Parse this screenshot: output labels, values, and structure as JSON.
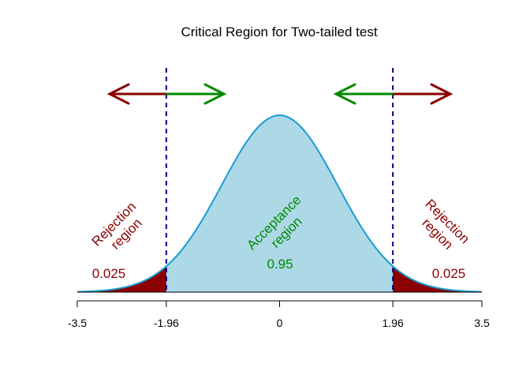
{
  "chart_data": {
    "type": "area",
    "title": "Critical Region for Two-tailed test",
    "xlabel": "",
    "ylabel": "",
    "xlim": [
      -3.5,
      3.5
    ],
    "ylim": [
      0,
      0.4
    ],
    "distribution": "standard normal",
    "x_ticks": [
      -3.5,
      -1.96,
      0,
      1.96,
      3.5
    ],
    "x_tick_labels": [
      "-3.5",
      "-1.96",
      "0",
      "1.96",
      "3.5"
    ],
    "critical_values": [
      -1.96,
      1.96
    ],
    "regions": [
      {
        "name": "rejection-left",
        "from": -3.5,
        "to": -1.96,
        "color": "#8B0000"
      },
      {
        "name": "acceptance",
        "from": -1.96,
        "to": 1.96,
        "color": "#ADD8E6"
      },
      {
        "name": "rejection-right",
        "from": 1.96,
        "to": 3.5,
        "color": "#8B0000"
      }
    ],
    "curve_color": "#1A9BD6",
    "critical_line_color": "#00008B",
    "annotations": {
      "left_region_line1": "Rejection",
      "left_region_line2": "region",
      "left_prob": "0.025",
      "center_region_line1": "Acceptance",
      "center_region_line2": "region",
      "center_prob": "0.95",
      "right_region_line1": "Rejection",
      "right_region_line2": "region",
      "right_prob": "0.025"
    },
    "annotation_colors": {
      "rejection": "#8B0000",
      "acceptance": "#008B00"
    },
    "arrows": [
      {
        "side": "left",
        "outer_color": "#8B0000",
        "inner_color": "#008B00"
      },
      {
        "side": "right",
        "outer_color": "#8B0000",
        "inner_color": "#008B00"
      }
    ],
    "grid": false,
    "legend": "none"
  }
}
